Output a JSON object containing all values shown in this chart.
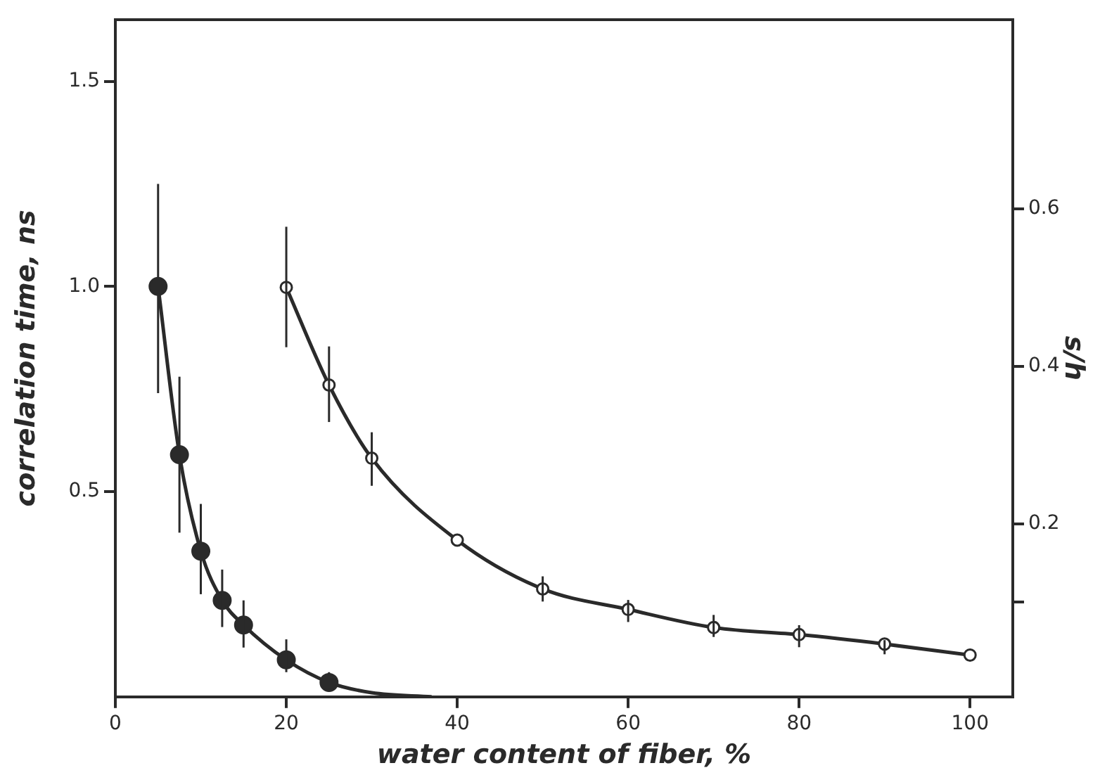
{
  "chart_data": {
    "type": "scatter",
    "xlabel": "water content of fiber, %",
    "ylabel": "correlation time, ns",
    "y2label": "s/h",
    "xlim": [
      0,
      105
    ],
    "xticks": [
      0,
      20,
      40,
      60,
      80,
      100
    ],
    "ylim": [
      0,
      1.65
    ],
    "yticks": [
      0.5,
      {
        "value": 1,
        "label": "1.0"
      },
      1.5
    ],
    "y2lim": [
      -0.02,
      0.84
    ],
    "y2ticks": [
      {
        "value": 0.1,
        "label": null
      },
      0.2,
      0.4,
      0.6
    ],
    "grid": false,
    "legend": false,
    "series": [
      {
        "type": "scatter",
        "marker": "circle",
        "color": "#2a2a2a",
        "x": [
          5,
          7.5,
          10,
          12.5,
          15,
          20,
          25
        ],
        "values": [
          1.0,
          0.59,
          0.355,
          0.235,
          0.175,
          0.09,
          0.035
        ],
        "errors": [
          [
            0.74,
            1.25
          ],
          [
            0.4,
            0.78
          ],
          [
            0.25,
            0.47
          ],
          [
            0.17,
            0.31
          ],
          [
            0.12,
            0.235
          ],
          [
            0.06,
            0.14
          ],
          [
            0.02,
            0.06
          ]
        ]
      },
      {
        "type": "line",
        "marker": "none",
        "color": "#2a2a2a",
        "x": [
          5,
          7.5,
          10,
          12.5,
          15,
          20,
          25,
          30,
          37
        ],
        "values": [
          1.0,
          0.59,
          0.355,
          0.235,
          0.175,
          0.09,
          0.035,
          0.01,
          0
        ]
      },
      {
        "type": "scatter",
        "marker": "circle",
        "axis": "y2",
        "color": "#2a2a2a",
        "x": [
          20,
          25,
          30,
          40,
          50,
          60,
          70,
          80,
          90,
          100
        ],
        "values": [
          0.5,
          0.376,
          0.283,
          0.179,
          0.117,
          0.091,
          0.068,
          0.059,
          0.047,
          0.033
        ],
        "errors": [
          [
            0.424,
            0.577
          ],
          [
            0.329,
            0.425
          ],
          [
            0.248,
            0.316
          ],
          null,
          [
            0.101,
            0.133
          ],
          [
            0.075,
            0.103
          ],
          [
            0.056,
            0.084
          ],
          [
            0.043,
            0.071
          ],
          [
            0.034,
            0.052
          ],
          null
        ]
      },
      {
        "type": "line",
        "marker": "none",
        "axis": "y2",
        "color": "#2a2a2a",
        "x": [
          20,
          25,
          30,
          40,
          50,
          60,
          70,
          80,
          90,
          100
        ],
        "values": [
          0.5,
          0.376,
          0.283,
          0.179,
          0.117,
          0.091,
          0.068,
          0.059,
          0.047,
          0.033
        ]
      }
    ]
  }
}
